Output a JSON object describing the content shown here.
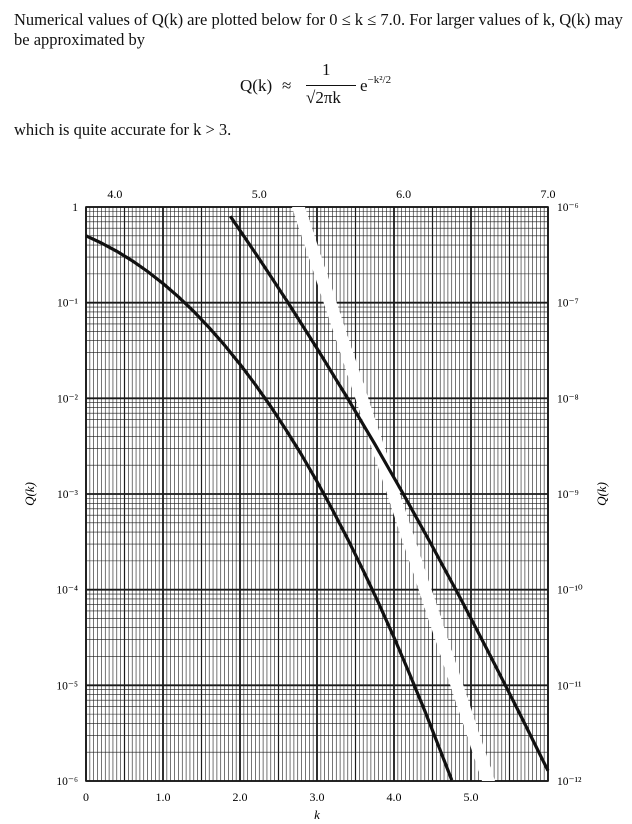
{
  "text": {
    "intro_1": "Numerical values of Q(k) are plotted below for 0 ≤ k ≤ 7.0. For larger values of k, Q(k) may be approximated by",
    "formula_lhs": "Q(k)",
    "formula_approx": "≈",
    "formula_num": "1",
    "formula_den": "√2πk",
    "formula_exp_base": "e",
    "formula_exp_power": "−k²/2",
    "outro": "which is quite accurate for k > 3."
  },
  "chart_data": {
    "type": "line",
    "xlabel": "k",
    "ylabel_left": "Q(k)",
    "ylabel_right": "Q(k)",
    "grid": true,
    "y_scale": "log",
    "bottom_x_ticks": [
      "0",
      "1.0",
      "2.0",
      "3.0",
      "4.0",
      "5.0"
    ],
    "top_x_ticks": [
      "4.0",
      "5.0",
      "6.0",
      "7.0"
    ],
    "left_y_ticks": [
      "1",
      "10⁻¹",
      "10⁻²",
      "10⁻³",
      "10⁻⁴",
      "10⁻⁵",
      "10⁻⁶"
    ],
    "right_y_ticks": [
      "10⁻⁶",
      "10⁻⁷",
      "10⁻⁸",
      "10⁻⁹",
      "10⁻¹⁰",
      "10⁻¹¹",
      "10⁻¹²"
    ],
    "series": [
      {
        "axis": "bottom-left",
        "xlim": [
          0,
          6
        ],
        "ylim": [
          1e-06,
          1
        ],
        "x": [
          0,
          0.2,
          0.4,
          0.6,
          0.8,
          1.0,
          1.2,
          1.4,
          1.6,
          1.8,
          2.0,
          2.2,
          2.4,
          2.6,
          2.8,
          3.0,
          3.2,
          3.4,
          3.6,
          3.8,
          4.0,
          4.2,
          4.4,
          4.6,
          4.75
        ],
        "y": [
          0.5,
          0.4207,
          0.3446,
          0.2743,
          0.2119,
          0.1587,
          0.1151,
          0.0808,
          0.0548,
          0.0359,
          0.02275,
          0.0139,
          0.0082,
          0.00466,
          0.00256,
          0.00135,
          0.000687,
          0.000337,
          0.000159,
          7.23e-05,
          3.17e-05,
          1.33e-05,
          5.4e-06,
          2.1e-06,
          1.02e-06
        ]
      },
      {
        "axis": "top-right",
        "xlim": [
          3.8,
          7.0
        ],
        "ylim": [
          1e-12,
          1e-06
        ],
        "x": [
          4.8,
          5.0,
          5.2,
          5.4,
          5.6,
          5.8,
          6.0,
          6.2,
          6.4,
          6.6,
          6.8,
          7.0
        ],
        "y": [
          8e-07,
          2.87e-07,
          9.96e-08,
          3.33e-08,
          1.07e-08,
          3.32e-09,
          9.87e-10,
          2.82e-10,
          7.77e-11,
          2.05e-11,
          5.21e-12,
          1.28e-12
        ]
      }
    ],
    "colors": {
      "curve": "#111111",
      "grid": "#1a1a1a",
      "band": "#ffffff"
    }
  }
}
